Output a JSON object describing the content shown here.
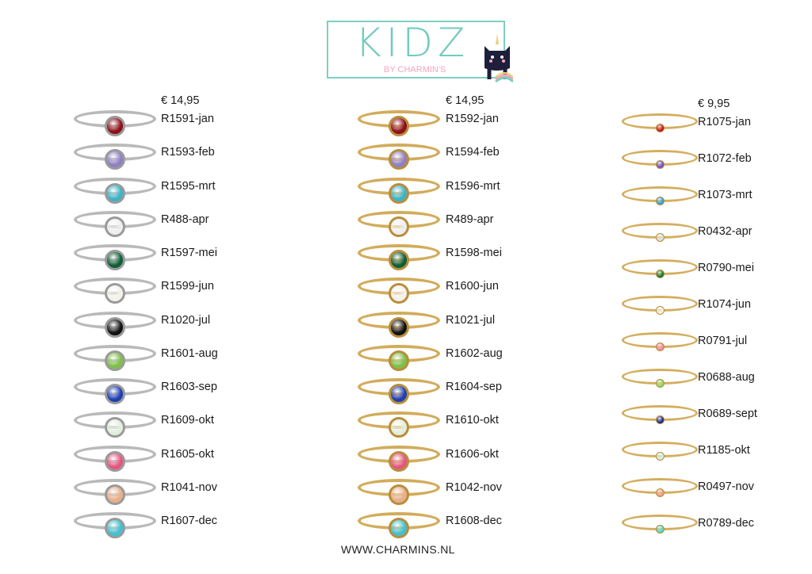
{
  "logo": {
    "title": "KIDZ",
    "subtitle": "BY CHARMIN'S"
  },
  "columns": [
    {
      "price": "€ 14,95",
      "metal": "silver",
      "items": [
        {
          "code": "R1591-jan",
          "stone": "#8e0f18"
        },
        {
          "code": "R1593-feb",
          "stone": "#8f7fc4"
        },
        {
          "code": "R1595-mrt",
          "stone": "#3fb3c4"
        },
        {
          "code": "R488-apr",
          "stone": "#eeeeee"
        },
        {
          "code": "R1597-mei",
          "stone": "#0f5e36"
        },
        {
          "code": "R1599-jun",
          "stone": "#f4f1ea"
        },
        {
          "code": "R1020-jul",
          "stone": "#111111"
        },
        {
          "code": "R1601-aug",
          "stone": "#7fbf4a"
        },
        {
          "code": "R1603-sep",
          "stone": "#1f3fb0"
        },
        {
          "code": "R1609-okt",
          "stone": "#e3eedc"
        },
        {
          "code": "R1605-okt",
          "stone": "#e3577f"
        },
        {
          "code": "R1041-nov",
          "stone": "#e7b08a"
        },
        {
          "code": "R1607-dec",
          "stone": "#45c0cf"
        }
      ]
    },
    {
      "price": "€ 14,95",
      "metal": "gold",
      "items": [
        {
          "code": "R1592-jan",
          "stone": "#8e0f18"
        },
        {
          "code": "R1594-feb",
          "stone": "#8f7fc4"
        },
        {
          "code": "R1596-mrt",
          "stone": "#3fb3c4"
        },
        {
          "code": "R489-apr",
          "stone": "#eeeeee"
        },
        {
          "code": "R1598-mei",
          "stone": "#0f5e36"
        },
        {
          "code": "R1600-jun",
          "stone": "#f4f1ea"
        },
        {
          "code": "R1021-jul",
          "stone": "#111111"
        },
        {
          "code": "R1602-aug",
          "stone": "#7fbf4a"
        },
        {
          "code": "R1604-sep",
          "stone": "#1f3fb0"
        },
        {
          "code": "R1610-okt",
          "stone": "#e3eedc"
        },
        {
          "code": "R1606-okt",
          "stone": "#e3577f"
        },
        {
          "code": "R1042-nov",
          "stone": "#e7b08a"
        },
        {
          "code": "R1608-dec",
          "stone": "#45c0cf"
        }
      ]
    },
    {
      "price": "€ 9,95",
      "metal": "gold-thin",
      "items": [
        {
          "code": "R1075-jan",
          "stone": "#c8141e"
        },
        {
          "code": "R1072-feb",
          "stone": "#6a4fd0"
        },
        {
          "code": "R1073-mrt",
          "stone": "#2f9fe0"
        },
        {
          "code": "R0432-apr",
          "stone": "#dddddd"
        },
        {
          "code": "R0790-mei",
          "stone": "#137a3c"
        },
        {
          "code": "R1074-jun",
          "stone": "#f6f3ea"
        },
        {
          "code": "R0791-jul",
          "stone": "#f08aa0"
        },
        {
          "code": "R0688-aug",
          "stone": "#8fd66a"
        },
        {
          "code": "R0689-sept",
          "stone": "#152a9a"
        },
        {
          "code": "R1185-okt",
          "stone": "#cfeee8"
        },
        {
          "code": "R0497-nov",
          "stone": "#eaa27f"
        },
        {
          "code": "R0789-dec",
          "stone": "#4fd8c8"
        }
      ]
    }
  ],
  "footer": "WWW.CHARMINS.NL",
  "colors": {
    "brand_teal": "#72cbbd",
    "brand_pink": "#f2a6c0",
    "silver": "#b5b5b5",
    "gold": "#c9a24e"
  }
}
